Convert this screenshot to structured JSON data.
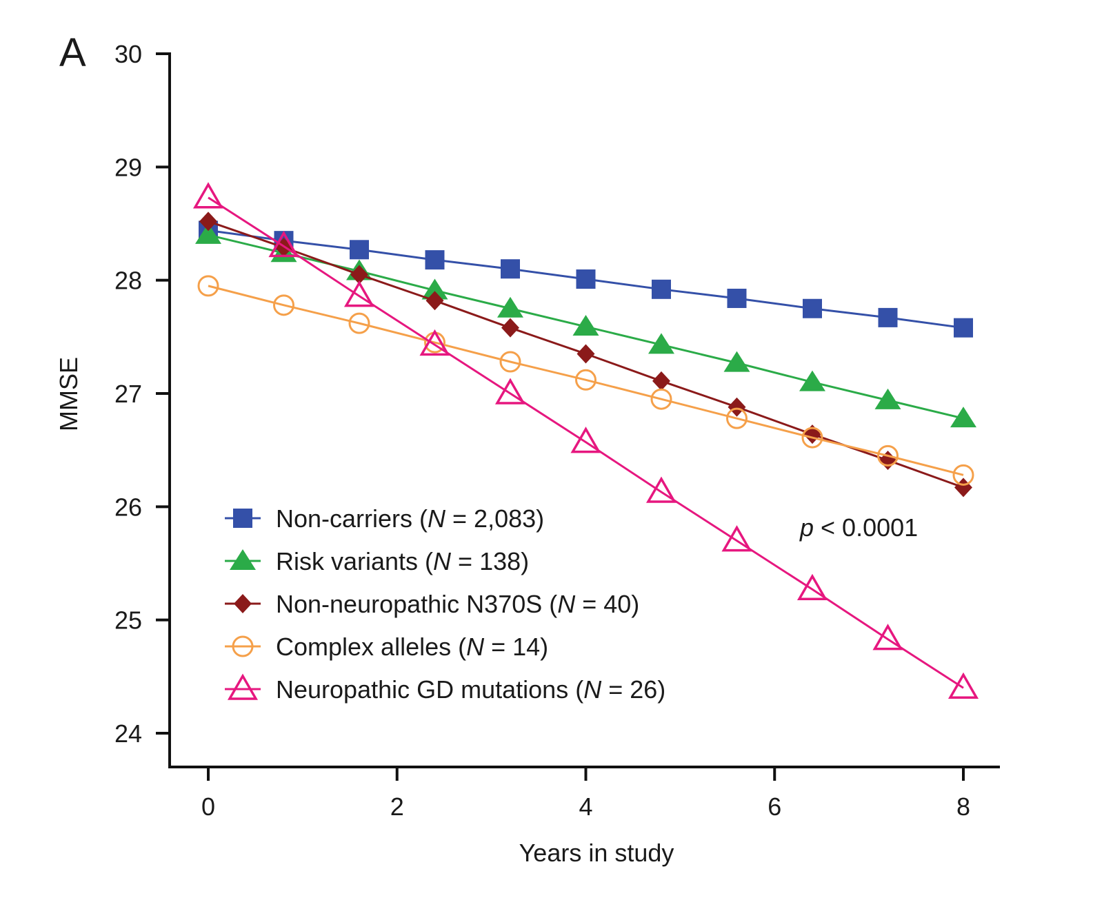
{
  "chart_data": {
    "type": "line",
    "panel_label": "A",
    "title": "",
    "xlabel": "Years in study",
    "ylabel": "MMSE",
    "xlim": [
      0,
      8
    ],
    "ylim": [
      24,
      30
    ],
    "x_ticks": [
      0,
      2,
      4,
      6,
      8
    ],
    "x_tick_labels": [
      "0",
      "2",
      "4",
      "6",
      "8"
    ],
    "y_ticks": [
      24,
      25,
      26,
      27,
      28,
      29,
      30
    ],
    "y_tick_labels": [
      "24",
      "25",
      "26",
      "27",
      "28",
      "29",
      "30"
    ],
    "grid": false,
    "legend_position": "bottom-left",
    "annotation": {
      "italic": "p",
      "text": " < 0.0001"
    },
    "x": [
      0,
      0.8,
      1.6,
      2.4,
      3.2,
      4.0,
      4.8,
      5.6,
      6.4,
      7.2,
      8.0
    ],
    "series": [
      {
        "name": "Non-carriers",
        "n_label": "2,083",
        "marker": "square-filled",
        "color": "#3450a8",
        "values": [
          28.44,
          28.35,
          28.27,
          28.18,
          28.1,
          28.01,
          27.92,
          27.84,
          27.75,
          27.67,
          27.58
        ]
      },
      {
        "name": "Risk variants",
        "n_label": "138",
        "marker": "triangle-filled",
        "color": "#2bab48",
        "values": [
          28.4,
          28.24,
          28.08,
          27.91,
          27.75,
          27.59,
          27.43,
          27.27,
          27.1,
          26.94,
          26.78
        ]
      },
      {
        "name": "Non-neuropathic N370S",
        "n_label": "40",
        "marker": "diamond-filled",
        "color": "#8b1a1a",
        "values": [
          28.52,
          28.29,
          28.05,
          27.82,
          27.58,
          27.35,
          27.11,
          26.88,
          26.64,
          26.41,
          26.17
        ]
      },
      {
        "name": "Complex alleles",
        "n_label": "14",
        "marker": "circle-open",
        "color": "#f5a04a",
        "values": [
          27.95,
          27.78,
          27.62,
          27.45,
          27.28,
          27.12,
          26.95,
          26.78,
          26.61,
          26.45,
          26.28
        ]
      },
      {
        "name": "Neuropathic GD mutations",
        "n_label": "26",
        "marker": "triangle-open",
        "color": "#e6177f",
        "values": [
          28.73,
          28.3,
          27.86,
          27.43,
          27.0,
          26.57,
          26.13,
          25.7,
          25.27,
          24.83,
          24.4
        ]
      }
    ]
  }
}
